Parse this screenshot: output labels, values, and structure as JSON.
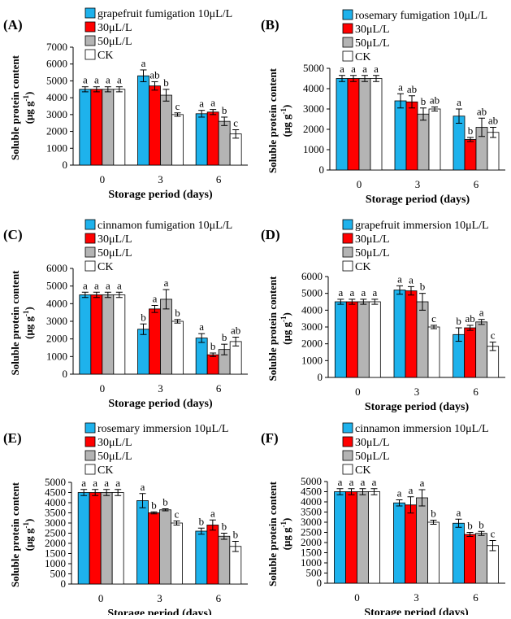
{
  "figure": {
    "colors": {
      "0": "#1eb2ec",
      "1": "#ff0000",
      "2": "#b4b4b4",
      "3": "#ffffff",
      "stroke": "#000000"
    }
  },
  "chart_data": [
    {
      "type": "bar",
      "panel_label": "(A)",
      "categories": [
        "0",
        "3",
        "6"
      ],
      "xlabel": "Storage period (days)",
      "ylabel_main": "Soluble protein content",
      "ylabel_unit": "(μg g",
      "ylabel_sup": "-1",
      "ylabel_close": ")",
      "ylim": [
        0,
        7000
      ],
      "yticks": [
        0,
        1000,
        2000,
        3000,
        4000,
        5000,
        6000,
        7000
      ],
      "grid": false,
      "legend_position": "top-left",
      "series": [
        {
          "name": "grapefruit fumigation 10μL/L",
          "values": [
            4500,
            5300,
            3050
          ],
          "errors": [
            150,
            350,
            200
          ],
          "letters": [
            "a",
            "a",
            "a"
          ]
        },
        {
          "name": "30μL/L",
          "values": [
            4500,
            4700,
            3150
          ],
          "errors": [
            150,
            250,
            150
          ],
          "letters": [
            "a",
            "ab",
            "a"
          ]
        },
        {
          "name": "50μL/L",
          "values": [
            4500,
            4150,
            2600
          ],
          "errors": [
            150,
            350,
            250
          ],
          "letters": [
            "a",
            "b",
            "b"
          ]
        },
        {
          "name": "CK",
          "values": [
            4500,
            3000,
            1850
          ],
          "errors": [
            150,
            100,
            250
          ],
          "letters": [
            "a",
            "c",
            "c"
          ]
        }
      ]
    },
    {
      "type": "bar",
      "panel_label": "(B)",
      "categories": [
        "0",
        "3",
        "6"
      ],
      "xlabel": "Storage period (days)",
      "ylabel_main": "Soluble protein content",
      "ylabel_unit": "(μg g",
      "ylabel_sup": "-1",
      "ylabel_close": ")",
      "ylim": [
        0,
        5000
      ],
      "yticks": [
        0,
        1000,
        2000,
        3000,
        4000,
        5000
      ],
      "grid": false,
      "legend_position": "top-left",
      "series": [
        {
          "name": "rosemary fumigation 10μL/L",
          "values": [
            4500,
            3400,
            2650
          ],
          "errors": [
            150,
            350,
            350
          ],
          "letters": [
            "a",
            "a",
            "a"
          ]
        },
        {
          "name": "30μL/L",
          "values": [
            4500,
            3350,
            1500
          ],
          "errors": [
            150,
            300,
            100
          ],
          "letters": [
            "a",
            "ab",
            "b"
          ]
        },
        {
          "name": "50μL/L",
          "values": [
            4500,
            2750,
            2100
          ],
          "errors": [
            150,
            300,
            450
          ],
          "letters": [
            "a",
            "b",
            "ab"
          ]
        },
        {
          "name": "CK",
          "values": [
            4500,
            3000,
            1850
          ],
          "errors": [
            150,
            100,
            250
          ],
          "letters": [
            "a",
            "ab",
            "ab"
          ]
        }
      ]
    },
    {
      "type": "bar",
      "panel_label": "(C)",
      "categories": [
        "0",
        "3",
        "6"
      ],
      "xlabel": "Storage period (days)",
      "ylabel_main": "Soluble protein content",
      "ylabel_unit": "(μg g",
      "ylabel_sup": "-1",
      "ylabel_close": ")",
      "ylim": [
        0,
        6000
      ],
      "yticks": [
        0,
        1000,
        2000,
        3000,
        4000,
        5000,
        6000
      ],
      "grid": false,
      "legend_position": "top-left",
      "series": [
        {
          "name": "cinnamon fumigation 10μL/L",
          "values": [
            4500,
            2550,
            2050
          ],
          "errors": [
            150,
            300,
            250
          ],
          "letters": [
            "a",
            "b",
            "a"
          ]
        },
        {
          "name": "30μL/L",
          "values": [
            4500,
            3700,
            1100
          ],
          "errors": [
            150,
            200,
            100
          ],
          "letters": [
            "a",
            "a",
            "b"
          ]
        },
        {
          "name": "50μL/L",
          "values": [
            4500,
            4250,
            1400
          ],
          "errors": [
            150,
            550,
            300
          ],
          "letters": [
            "a",
            "a",
            "b"
          ]
        },
        {
          "name": "CK",
          "values": [
            4500,
            3000,
            1850
          ],
          "errors": [
            150,
            100,
            250
          ],
          "letters": [
            "a",
            "b",
            "ab"
          ]
        }
      ]
    },
    {
      "type": "bar",
      "panel_label": "(D)",
      "categories": [
        "0",
        "3",
        "6"
      ],
      "xlabel": "Storage period (days)",
      "ylabel_main": "Soluble protein content",
      "ylabel_unit": "(μg g",
      "ylabel_sup": "-1",
      "ylabel_close": ")",
      "ylim": [
        0,
        6000
      ],
      "yticks": [
        0,
        1000,
        2000,
        3000,
        4000,
        5000,
        6000
      ],
      "grid": false,
      "legend_position": "top-left",
      "series": [
        {
          "name": "grapefruit immersion 10μL/L",
          "values": [
            4500,
            5200,
            2550
          ],
          "errors": [
            150,
            250,
            400
          ],
          "letters": [
            "a",
            "a",
            "b"
          ]
        },
        {
          "name": "30μL/L",
          "values": [
            4500,
            5150,
            2950
          ],
          "errors": [
            150,
            250,
            150
          ],
          "letters": [
            "a",
            "a",
            "ab"
          ]
        },
        {
          "name": "50μL/L",
          "values": [
            4500,
            4500,
            3300
          ],
          "errors": [
            150,
            500,
            150
          ],
          "letters": [
            "a",
            "b",
            "a"
          ]
        },
        {
          "name": "CK",
          "values": [
            4500,
            3000,
            1850
          ],
          "errors": [
            150,
            100,
            250
          ],
          "letters": [
            "a",
            "c",
            "c"
          ]
        }
      ]
    },
    {
      "type": "bar",
      "panel_label": "(E)",
      "categories": [
        "0",
        "3",
        "6"
      ],
      "xlabel": "Storage period (days)",
      "ylabel_main": "Soluble protein content",
      "ylabel_unit": "(μg g",
      "ylabel_sup": "-1",
      "ylabel_close": ")",
      "ylim": [
        0,
        5000
      ],
      "yticks": [
        0,
        500,
        1000,
        1500,
        2000,
        2500,
        3000,
        3500,
        4000,
        4500,
        5000
      ],
      "grid": false,
      "legend_position": "top-left",
      "series": [
        {
          "name": "rosemary immersion 10μL/L",
          "values": [
            4500,
            4100,
            2600
          ],
          "errors": [
            150,
            350,
            150
          ],
          "letters": [
            "a",
            "a",
            "b"
          ]
        },
        {
          "name": "30μL/L",
          "values": [
            4500,
            3500,
            2900
          ],
          "errors": [
            150,
            50,
            250
          ],
          "letters": [
            "a",
            "b",
            "a"
          ]
        },
        {
          "name": "50μL/L",
          "values": [
            4500,
            3650,
            2350
          ],
          "errors": [
            150,
            50,
            150
          ],
          "letters": [
            "a",
            "b",
            "b"
          ]
        },
        {
          "name": "CK",
          "values": [
            4500,
            3000,
            1850
          ],
          "errors": [
            150,
            100,
            250
          ],
          "letters": [
            "a",
            "c",
            "b"
          ]
        }
      ]
    },
    {
      "type": "bar",
      "panel_label": "(F)",
      "categories": [
        "0",
        "3",
        "6"
      ],
      "xlabel": "Storage period (days)",
      "ylabel_main": "Soluble protein content",
      "ylabel_unit": "(μg g",
      "ylabel_sup": "-1",
      "ylabel_close": ")",
      "ylim": [
        0,
        5000
      ],
      "yticks": [
        0,
        500,
        1000,
        1500,
        2000,
        2500,
        3000,
        3500,
        4000,
        4500,
        5000
      ],
      "grid": false,
      "legend_position": "top-left",
      "series": [
        {
          "name": "cinnamon immersion 10μL/L",
          "values": [
            4500,
            3950,
            2950
          ],
          "errors": [
            150,
            150,
            200
          ],
          "letters": [
            "a",
            "a",
            "a"
          ]
        },
        {
          "name": "30μL/L",
          "values": [
            4500,
            3850,
            2400
          ],
          "errors": [
            150,
            400,
            100
          ],
          "letters": [
            "a",
            "a",
            "b"
          ]
        },
        {
          "name": "50μL/L",
          "values": [
            4500,
            4200,
            2450
          ],
          "errors": [
            150,
            400,
            100
          ],
          "letters": [
            "a",
            "a",
            "b"
          ]
        },
        {
          "name": "CK",
          "values": [
            4500,
            3000,
            1850
          ],
          "errors": [
            150,
            100,
            250
          ],
          "letters": [
            "a",
            "b",
            "c"
          ]
        }
      ]
    }
  ]
}
